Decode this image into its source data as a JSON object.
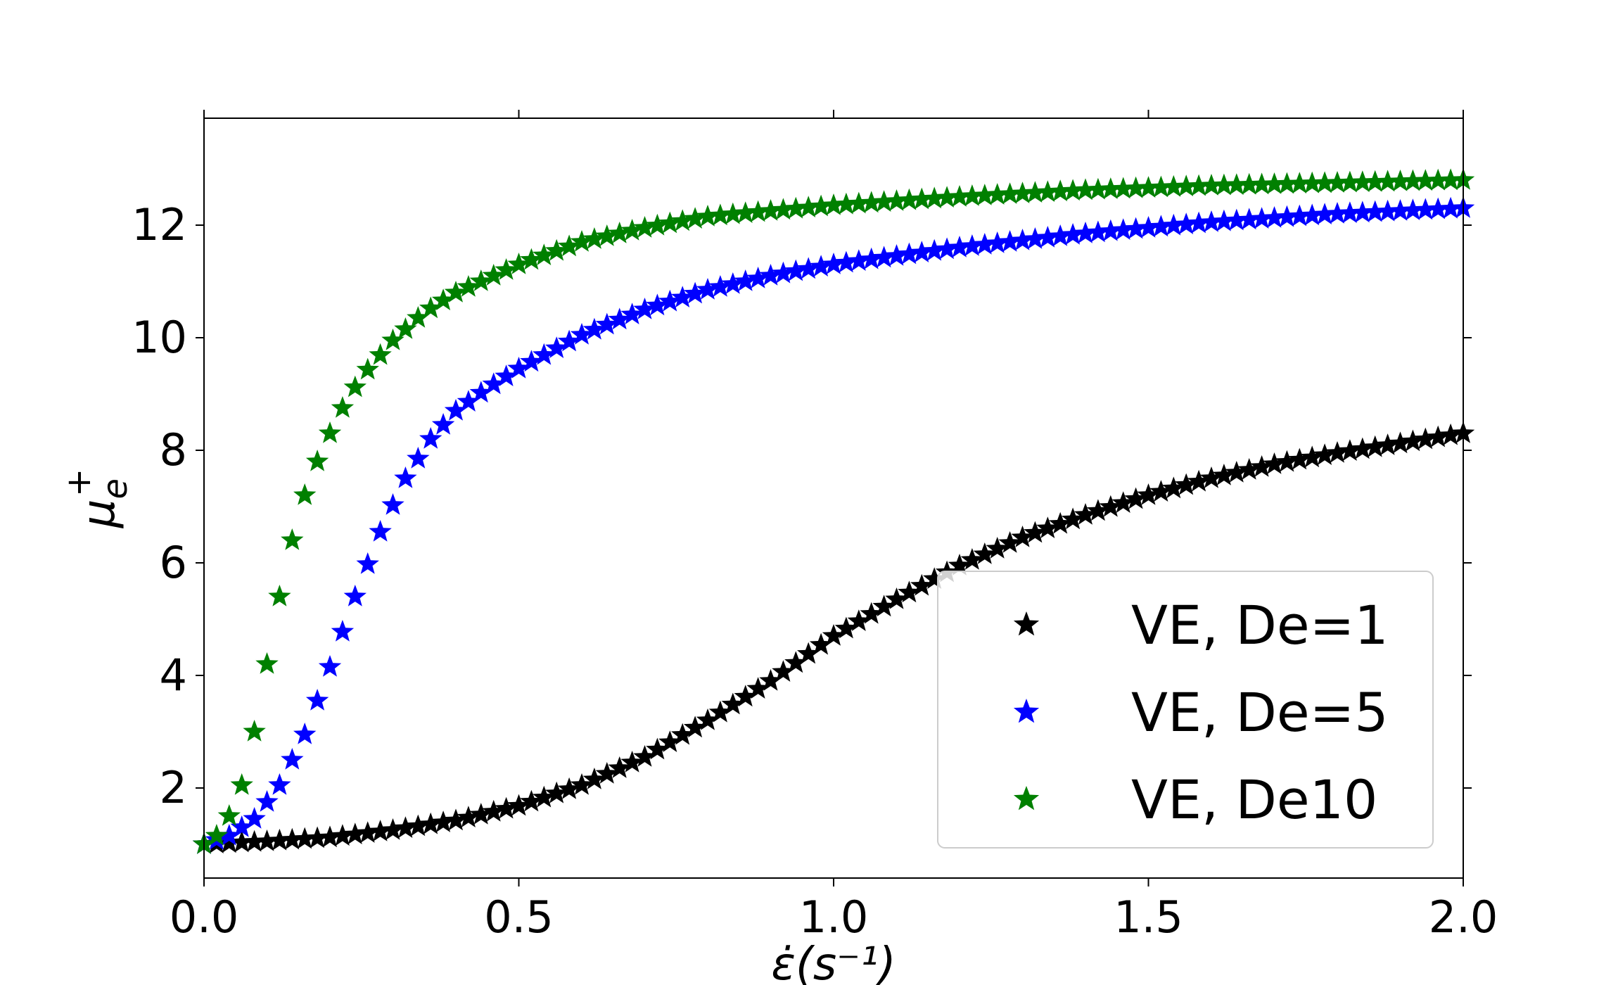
{
  "chart_data": {
    "type": "scatter",
    "title": "",
    "xlabel": "ε̇(s⁻¹)",
    "ylabel": "μ",
    "ylabel_sub": "e",
    "ylabel_sup": "+",
    "xlim": [
      0.0,
      2.0
    ],
    "ylim": [
      0.4,
      13.9
    ],
    "xticks": [
      0.0,
      0.5,
      1.0,
      1.5,
      2.0
    ],
    "xtick_labels": [
      "0.0",
      "0.5",
      "1.0",
      "1.5",
      "2.0"
    ],
    "yticks": [
      2,
      4,
      6,
      8,
      10,
      12
    ],
    "ytick_labels": [
      "2",
      "4",
      "6",
      "8",
      "10",
      "12"
    ],
    "grid": false,
    "legend_position": "lower-right",
    "marker": "star",
    "series": [
      {
        "name": "VE, De=1",
        "color": "#000000",
        "x": [
          0.0,
          0.1,
          0.2,
          0.3,
          0.4,
          0.5,
          0.6,
          0.7,
          0.8,
          0.9,
          1.0,
          1.1,
          1.2,
          1.3,
          1.4,
          1.5,
          1.6,
          1.7,
          1.8,
          1.9,
          2.0
        ],
        "y": [
          1.0,
          1.05,
          1.12,
          1.25,
          1.42,
          1.68,
          2.05,
          2.55,
          3.2,
          3.9,
          4.7,
          5.35,
          5.95,
          6.45,
          6.85,
          7.2,
          7.5,
          7.75,
          7.95,
          8.12,
          8.3
        ]
      },
      {
        "name": "VE, De=5",
        "color": "#0000ff",
        "x": [
          0.0,
          0.04,
          0.08,
          0.12,
          0.16,
          0.2,
          0.24,
          0.28,
          0.32,
          0.36,
          0.4,
          0.45,
          0.5,
          0.6,
          0.7,
          0.8,
          0.9,
          1.0,
          1.2,
          1.4,
          1.6,
          1.8,
          2.0
        ],
        "y": [
          1.0,
          1.15,
          1.45,
          2.05,
          2.95,
          4.15,
          5.4,
          6.55,
          7.5,
          8.2,
          8.7,
          9.1,
          9.45,
          10.05,
          10.5,
          10.85,
          11.1,
          11.3,
          11.6,
          11.85,
          12.05,
          12.2,
          12.3
        ]
      },
      {
        "name": "VE, De10",
        "color": "#008000",
        "x": [
          0.0,
          0.02,
          0.04,
          0.06,
          0.08,
          0.1,
          0.12,
          0.14,
          0.16,
          0.18,
          0.2,
          0.22,
          0.25,
          0.3,
          0.35,
          0.4,
          0.5,
          0.6,
          0.7,
          0.8,
          1.0,
          1.2,
          1.4,
          1.6,
          1.8,
          2.0
        ],
        "y": [
          1.0,
          1.15,
          1.5,
          2.05,
          3.0,
          4.2,
          5.4,
          6.4,
          7.2,
          7.8,
          8.3,
          8.75,
          9.3,
          9.95,
          10.45,
          10.8,
          11.3,
          11.7,
          11.95,
          12.15,
          12.35,
          12.5,
          12.62,
          12.7,
          12.75,
          12.8
        ]
      }
    ]
  }
}
